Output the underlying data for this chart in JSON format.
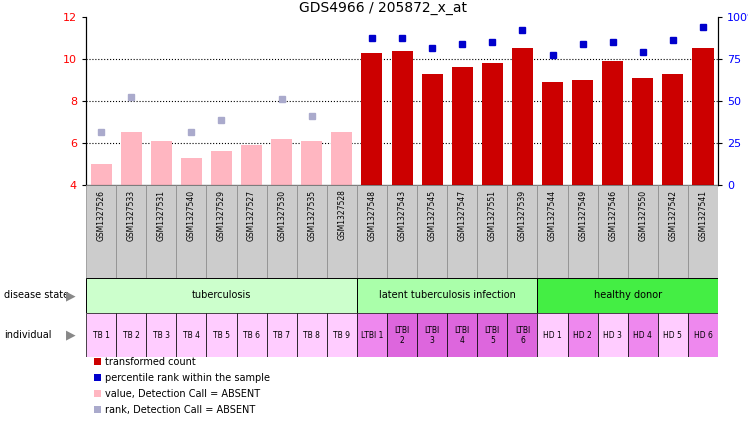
{
  "title": "GDS4966 / 205872_x_at",
  "samples": [
    "GSM1327526",
    "GSM1327533",
    "GSM1327531",
    "GSM1327540",
    "GSM1327529",
    "GSM1327527",
    "GSM1327530",
    "GSM1327535",
    "GSM1327528",
    "GSM1327548",
    "GSM1327543",
    "GSM1327545",
    "GSM1327547",
    "GSM1327551",
    "GSM1327539",
    "GSM1327544",
    "GSM1327549",
    "GSM1327546",
    "GSM1327550",
    "GSM1327542",
    "GSM1327541"
  ],
  "bar_values": [
    5.0,
    6.5,
    6.1,
    5.3,
    5.6,
    5.9,
    6.2,
    6.1,
    6.5,
    10.3,
    10.4,
    9.3,
    9.6,
    9.8,
    10.5,
    8.9,
    9.0,
    9.9,
    9.1,
    9.3,
    10.5
  ],
  "bar_absent": [
    true,
    true,
    true,
    true,
    true,
    true,
    true,
    true,
    true,
    false,
    false,
    false,
    false,
    false,
    false,
    false,
    false,
    false,
    false,
    false,
    false
  ],
  "rank_values": [
    6.5,
    8.2,
    null,
    6.5,
    7.1,
    null,
    8.1,
    7.3,
    null,
    11.0,
    11.0,
    10.5,
    10.7,
    10.8,
    11.4,
    10.2,
    10.7,
    10.8,
    10.35,
    10.9,
    11.5
  ],
  "rank_absent": [
    true,
    true,
    true,
    true,
    true,
    true,
    true,
    true,
    true,
    false,
    false,
    false,
    false,
    false,
    false,
    false,
    false,
    false,
    false,
    false,
    false
  ],
  "individual_labels": [
    "TB 1",
    "TB 2",
    "TB 3",
    "TB 4",
    "TB 5",
    "TB 6",
    "TB 7",
    "TB 8",
    "TB 9",
    "LTBI 1",
    "LTBI\n2",
    "LTBI\n3",
    "LTBI\n4",
    "LTBI\n5",
    "LTBI\n6",
    "HD 1",
    "HD 2",
    "HD 3",
    "HD 4",
    "HD 5",
    "HD 6"
  ],
  "individual_colors": [
    "#FFCCFF",
    "#FFCCFF",
    "#FFCCFF",
    "#FFCCFF",
    "#FFCCFF",
    "#FFCCFF",
    "#FFCCFF",
    "#FFCCFF",
    "#FFCCFF",
    "#EE88EE",
    "#DD66DD",
    "#DD66DD",
    "#DD66DD",
    "#DD66DD",
    "#DD66DD",
    "#FFCCFF",
    "#EE88EE",
    "#FFCCFF",
    "#EE88EE",
    "#FFCCFF",
    "#EE88EE"
  ],
  "disease_groups": [
    {
      "label": "tuberculosis",
      "start": 0,
      "end": 8,
      "color": "#CCFFCC"
    },
    {
      "label": "latent tuberculosis infection",
      "start": 9,
      "end": 14,
      "color": "#AAFFAA"
    },
    {
      "label": "healthy donor",
      "start": 15,
      "end": 20,
      "color": "#44EE44"
    }
  ],
  "ylim": [
    4,
    12
  ],
  "yticks_left": [
    4,
    6,
    8,
    10,
    12
  ],
  "yticks_right": [
    0,
    25,
    50,
    75,
    100
  ],
  "bar_color_present": "#CC0000",
  "bar_color_absent": "#FFB6C1",
  "rank_color_present": "#0000CC",
  "rank_color_absent": "#AAAACC",
  "dotted_lines": [
    6,
    8,
    10
  ],
  "legend_items": [
    {
      "color": "#CC0000",
      "label": "transformed count"
    },
    {
      "color": "#0000CC",
      "label": "percentile rank within the sample"
    },
    {
      "color": "#FFB6C1",
      "label": "value, Detection Call = ABSENT"
    },
    {
      "color": "#AAAACC",
      "label": "rank, Detection Call = ABSENT"
    }
  ]
}
